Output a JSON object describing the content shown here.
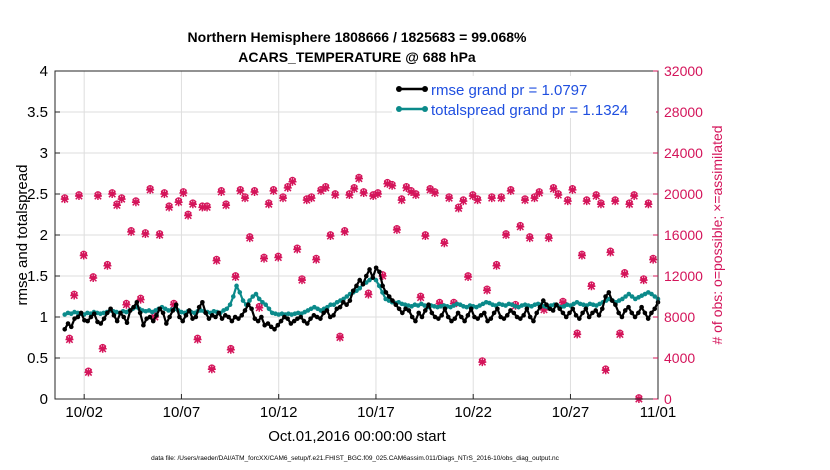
{
  "chart_data": {
    "type": "line",
    "title_line1": "Northern Hemisphere 1808666 / 1825683 = 99.068%",
    "title_line2": "ACARS_TEMPERATURE @ 688 hPa",
    "xlabel": "Oct.01,2016 00:00:00 start",
    "ylabel_left": "rmse and totalspread",
    "ylabel_right": "# of obs: o=possible; ×=assimilated",
    "footer": "data file: /Users/raeder/DAI/ATM_forcXX/CAM6_setup/f.e21.FHIST_BGC.f09_025.CAM6assim.011/Diags_NTrS_2016-10/obs_diag_output.nc",
    "xlim": [
      0.5,
      31.5
    ],
    "ylim_left": [
      0,
      4
    ],
    "ylim_right": [
      0,
      32000
    ],
    "x_ticks": [
      {
        "x": 2,
        "label": "10/02"
      },
      {
        "x": 7,
        "label": "10/07"
      },
      {
        "x": 12,
        "label": "10/12"
      },
      {
        "x": 17,
        "label": "10/17"
      },
      {
        "x": 22,
        "label": "10/22"
      },
      {
        "x": 27,
        "label": "10/27"
      },
      {
        "x": 32,
        "label": "11/01"
      }
    ],
    "y_ticks_left": [
      "0",
      "0.5",
      "1",
      "1.5",
      "2",
      "2.5",
      "3",
      "3.5",
      "4"
    ],
    "y_ticks_right": [
      "0",
      "4000",
      "8000",
      "12000",
      "16000",
      "20000",
      "24000",
      "28000",
      "32000"
    ],
    "legend": [
      {
        "label": "rmse grand pr = 1.0797",
        "color": "#000000"
      },
      {
        "label": "totalspread grand pr = 1.1324",
        "color": "#0b8a8a"
      }
    ],
    "colors": {
      "rmse": "#000000",
      "totalspread": "#0b8a8a",
      "obs": "#d4145a",
      "legend_text": "#1f4fe0"
    },
    "rmse": [
      0.85,
      0.92,
      0.88,
      0.98,
      1.0,
      1.05,
      0.96,
      0.95,
      1.0,
      1.04,
      0.94,
      0.92,
      0.98,
      1.05,
      1.1,
      1.02,
      0.95,
      1.05,
      1.0,
      0.93,
      1.08,
      1.12,
      1.18,
      1.05,
      0.9,
      0.98,
      1.0,
      0.95,
      1.02,
      1.1,
      1.05,
      0.92,
      1.0,
      1.08,
      1.15,
      1.0,
      0.95,
      1.02,
      1.08,
      0.98,
      1.0,
      1.12,
      1.18,
      1.05,
      0.98,
      1.02,
      1.0,
      1.05,
      0.98,
      1.02,
      1.0,
      0.95,
      1.0,
      0.98,
      1.02,
      1.08,
      1.15,
      1.1,
      0.98,
      0.95,
      1.0,
      0.9,
      0.92,
      0.88,
      0.85,
      0.9,
      0.95,
      1.0,
      0.98,
      0.92,
      0.95,
      0.98,
      1.0,
      0.95,
      0.92,
      0.98,
      1.02,
      1.0,
      0.98,
      1.05,
      1.08,
      1.0,
      1.02,
      1.1,
      1.12,
      1.18,
      1.15,
      1.2,
      1.32,
      1.38,
      1.45,
      1.4,
      1.5,
      1.58,
      1.48,
      1.6,
      1.55,
      1.38,
      1.3,
      1.25,
      1.2,
      1.15,
      1.1,
      1.05,
      1.1,
      1.08,
      1.0,
      0.95,
      1.05,
      1.0,
      1.08,
      1.15,
      1.05,
      1.0,
      0.98,
      1.02,
      1.1,
      1.0,
      0.95,
      0.98,
      1.05,
      1.0,
      0.95,
      1.02,
      1.1,
      1.0,
      0.98,
      1.02,
      1.05,
      0.95,
      0.98,
      1.05,
      1.1,
      1.0,
      0.98,
      1.02,
      1.08,
      1.05,
      1.0,
      0.98,
      1.02,
      1.1,
      1.0,
      0.95,
      1.05,
      1.12,
      1.2,
      1.15,
      1.1,
      1.08,
      1.15,
      1.1,
      1.05,
      1.0,
      1.05,
      1.1,
      1.02,
      0.98,
      1.05,
      1.1,
      1.0,
      1.05,
      1.08,
      1.02,
      1.1,
      1.25,
      1.3,
      1.2,
      1.15,
      1.05,
      1.0,
      1.08,
      1.12,
      1.05,
      1.0,
      1.05,
      1.12,
      1.05,
      0.98,
      1.05,
      1.1,
      1.18
    ],
    "totalspread": [
      1.03,
      1.05,
      1.04,
      1.06,
      1.05,
      1.04,
      1.03,
      1.05,
      1.04,
      1.06,
      1.05,
      1.04,
      1.05,
      1.06,
      1.08,
      1.07,
      1.06,
      1.05,
      1.07,
      1.06,
      1.08,
      1.1,
      1.12,
      1.1,
      1.08,
      1.07,
      1.08,
      1.06,
      1.08,
      1.1,
      1.12,
      1.1,
      1.08,
      1.09,
      1.1,
      1.08,
      1.06,
      1.05,
      1.07,
      1.06,
      1.05,
      1.07,
      1.08,
      1.07,
      1.06,
      1.05,
      1.07,
      1.06,
      1.05,
      1.08,
      1.1,
      1.15,
      1.25,
      1.38,
      1.3,
      1.2,
      1.15,
      1.2,
      1.25,
      1.28,
      1.22,
      1.18,
      1.15,
      1.1,
      1.05,
      1.04,
      1.03,
      1.04,
      1.03,
      1.04,
      1.03,
      1.04,
      1.05,
      1.04,
      1.06,
      1.08,
      1.1,
      1.12,
      1.1,
      1.08,
      1.1,
      1.12,
      1.15,
      1.15,
      1.18,
      1.2,
      1.22,
      1.25,
      1.28,
      1.3,
      1.32,
      1.35,
      1.4,
      1.42,
      1.45,
      1.48,
      1.45,
      1.38,
      1.3,
      1.22,
      1.2,
      1.18,
      1.17,
      1.18,
      1.16,
      1.15,
      1.14,
      1.13,
      1.15,
      1.14,
      1.16,
      1.14,
      1.12,
      1.14,
      1.13,
      1.12,
      1.13,
      1.14,
      1.13,
      1.12,
      1.14,
      1.16,
      1.15,
      1.13,
      1.12,
      1.14,
      1.13,
      1.12,
      1.14,
      1.16,
      1.18,
      1.17,
      1.15,
      1.14,
      1.16,
      1.15,
      1.14,
      1.16,
      1.15,
      1.13,
      1.12,
      1.14,
      1.15,
      1.14,
      1.13,
      1.15,
      1.16,
      1.15,
      1.13,
      1.12,
      1.14,
      1.15,
      1.14,
      1.12,
      1.13,
      1.15,
      1.14,
      1.16,
      1.18,
      1.16,
      1.15,
      1.14,
      1.16,
      1.15,
      1.14,
      1.16,
      1.18,
      1.2,
      1.22,
      1.2,
      1.18,
      1.2,
      1.22,
      1.25,
      1.28,
      1.25,
      1.22,
      1.24,
      1.26,
      1.28,
      1.3,
      1.28,
      1.25,
      1.22
    ],
    "obs_assimilated": [
      19500,
      5800,
      10100,
      19800,
      14000,
      2600,
      11800,
      19800,
      4900,
      13000,
      20000,
      18900,
      19500,
      9200,
      16300,
      19200,
      9700,
      16100,
      20400,
      8000,
      16000,
      20000,
      18700,
      9200,
      19200,
      20100,
      17900,
      19000,
      5800,
      18700,
      18700,
      2900,
      13500,
      20200,
      18900,
      4800,
      11900,
      20300,
      19600,
      15700,
      20200,
      8900,
      13700,
      19000,
      20300,
      13800,
      19600,
      20600,
      21200,
      14600,
      11600,
      19400,
      19600,
      13600,
      20300,
      20600,
      15900,
      19900,
      6000,
      16300,
      19900,
      20500,
      21500,
      20100,
      10200,
      19800,
      20000,
      12000,
      21000,
      20800,
      16500,
      19400,
      20600,
      20200,
      19900,
      9900,
      15900,
      20400,
      20100,
      9300,
      15200,
      19600,
      9300,
      18600,
      19300,
      11900,
      19800,
      19400,
      3600,
      10600,
      19600,
      13000,
      19600,
      16000,
      20300,
      9100,
      16800,
      19400,
      15700,
      19600,
      20100,
      8700,
      15700,
      20500,
      19900,
      9400,
      19300,
      20400,
      6300,
      14000,
      19300,
      11000,
      19800,
      19000,
      2800,
      14300,
      19300,
      6300,
      12200,
      19000,
      19800,
      0,
      11600,
      19000,
      13600
    ]
  }
}
